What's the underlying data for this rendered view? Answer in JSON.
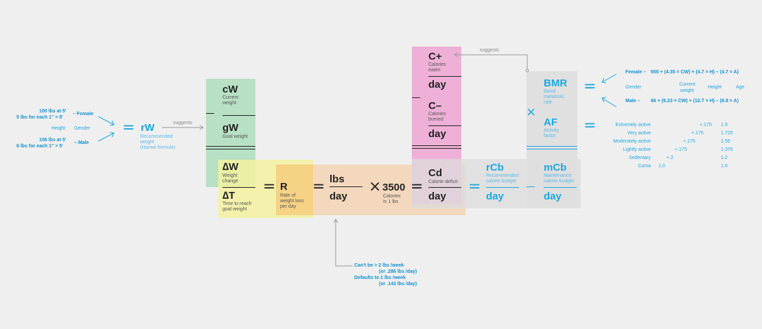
{
  "colors": {
    "blue": "#1ea7e1",
    "green": "#b9e2c6",
    "yellow": "#f3f1a6",
    "orange": "#f6d9be",
    "gold": "#f5d48a",
    "pink": "#efb0d6",
    "gray": "#dcdcdc"
  },
  "left_inputs": {
    "female_line1": "100 lbs at 5'",
    "female_line2": "5 lbs for each 1\" > 5'",
    "female_label": "– Female",
    "height": "Height",
    "gender": "Gender",
    "male_line1": "106 lbs at 5'",
    "male_line2": "6 lbs for each 1\" > 5'",
    "male_label": "– Male"
  },
  "rw": {
    "symbol": "rW",
    "desc": "Recommended\nweight\n(Hamwi formula)"
  },
  "suggests_1": "suggests",
  "suggests_2": "suggests",
  "cw": {
    "symbol": "cW",
    "desc": "Current\nweight"
  },
  "gw": {
    "symbol": "gW",
    "desc": "Goal weight"
  },
  "dw": {
    "symbol": "∆W",
    "desc": "Weight\nchange"
  },
  "dt": {
    "symbol": "∆T",
    "desc": "Time to reach\ngoal weight"
  },
  "r": {
    "symbol": "R",
    "desc": "Rate of\nweight loss\nper day"
  },
  "lbs": "lbs",
  "day": "day",
  "k3500": {
    "value": "3500",
    "desc": "Calories\nin 1 lbs"
  },
  "cplus": {
    "symbol": "C+",
    "desc": "Calories\neaten"
  },
  "cminus": {
    "symbol": "C–",
    "desc": "Calories\nburned"
  },
  "cd": {
    "symbol": "Cd",
    "desc": "Calorie deficit"
  },
  "rcb": {
    "symbol": "rCb",
    "desc": "Recommended\ncalorie budget"
  },
  "mcb": {
    "symbol": "mCb",
    "desc": "Maintenance\ncalorie budget"
  },
  "bmr": {
    "symbol": "BMR",
    "desc": "Basal\nmetabolic\nrate"
  },
  "af": {
    "symbol": "AF",
    "desc": "Activity\nfactor"
  },
  "bmr_formula": {
    "female_label": "Female –",
    "female_formula": "655 + (4.35 × CW) + (4.7 × H) – (4.7 × A)",
    "gender": "Gender",
    "current_weight": "Current\nweight",
    "height": "Height",
    "age": "Age",
    "male_label": "Male –",
    "male_formula": "66 + (6.23 × CW) + (12.7 × H) – (6.8 × A)"
  },
  "activity": [
    {
      "label": "Extremely active",
      "delta": "+.175",
      "value": "1.9"
    },
    {
      "label": "Very active",
      "delta": "+.175",
      "value": "1.725"
    },
    {
      "label": "Moderately active",
      "delta": "+.175",
      "value": "1.55"
    },
    {
      "label": "Lightly active",
      "delta": "+.175",
      "value": "1.375"
    },
    {
      "label": "Sedentary",
      "delta": "+.2",
      "value": "1.2"
    },
    {
      "label": "Coma",
      "delta": "1.0",
      "value": "1.0"
    }
  ],
  "rate_note": {
    "line1": "Can't be > 2 lbs /week",
    "line2": "(or .286 lbs /day)",
    "line3": "Defaults to 1 lbs /week",
    "line4": "(or .143 lbs /day)"
  }
}
